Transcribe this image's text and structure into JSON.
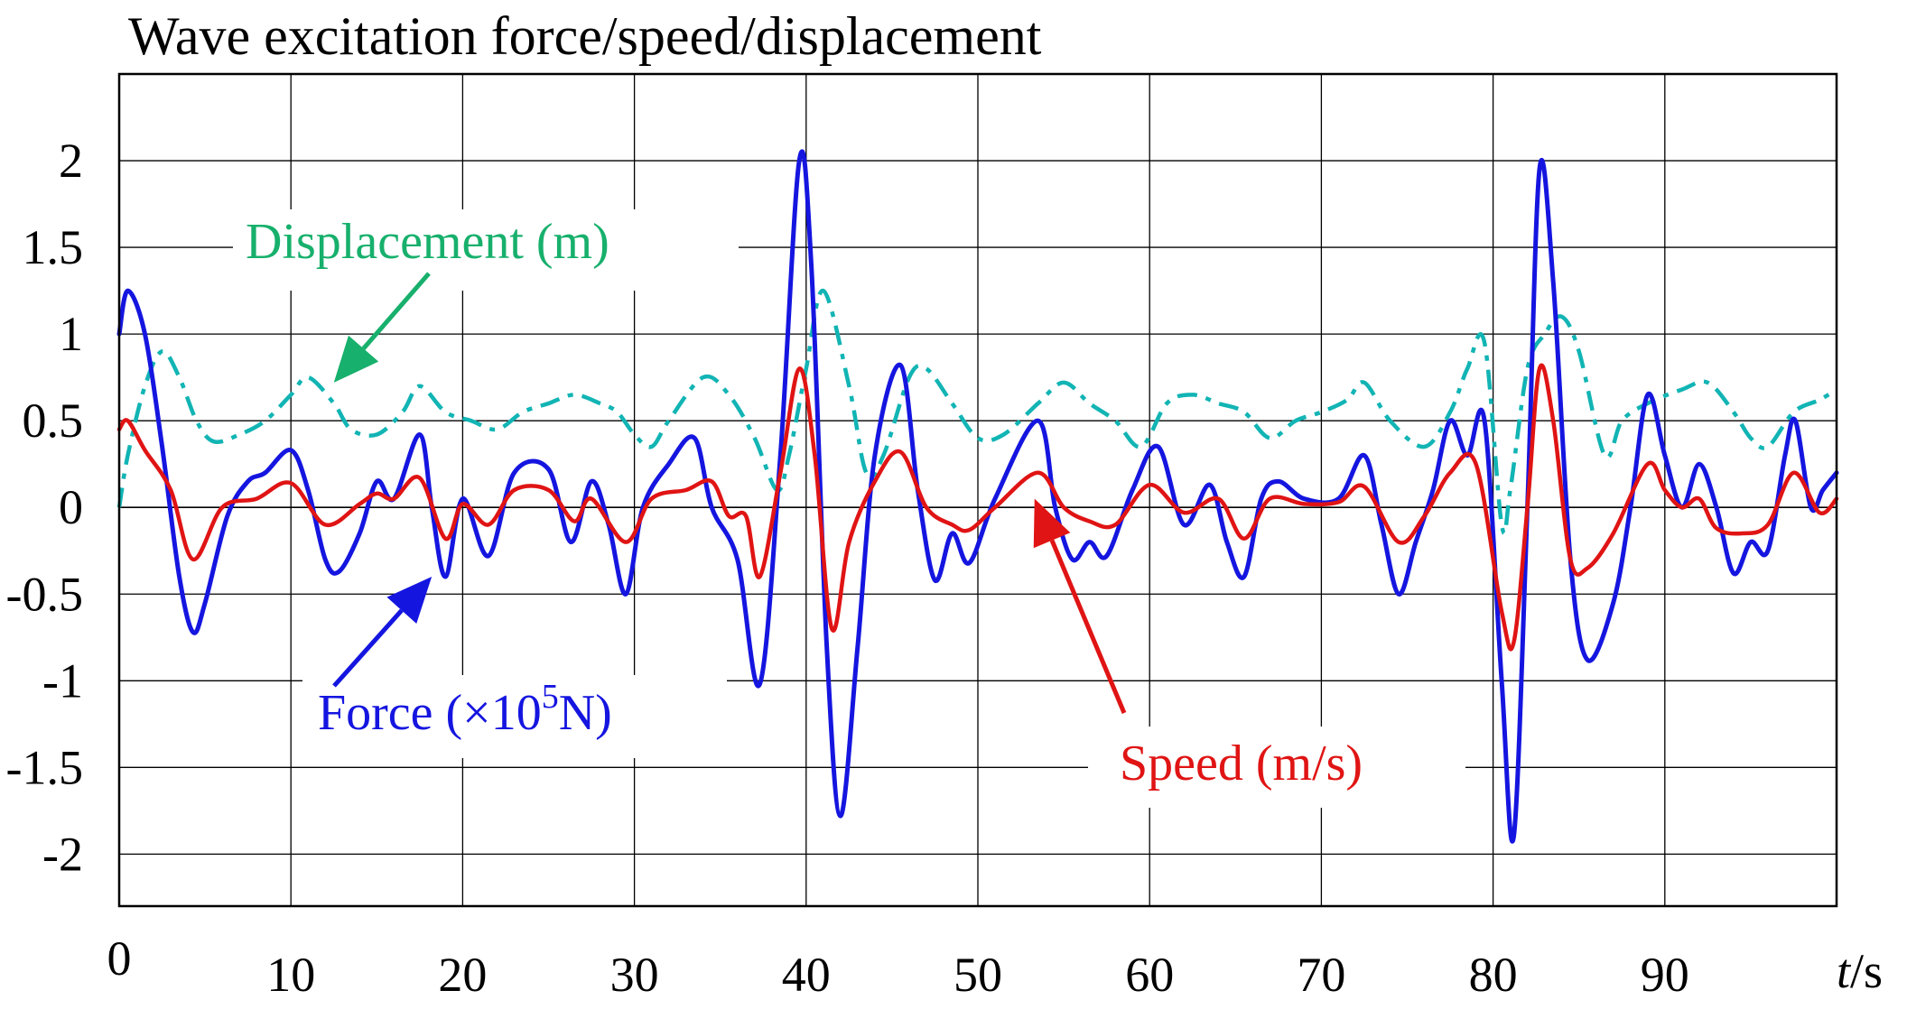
{
  "chart_data": {
    "type": "line",
    "title": "Wave excitation force/speed/displacement",
    "xlabel_italic": "t",
    "xlabel_unit": "/s",
    "xlim": [
      0,
      100
    ],
    "ylim": [
      -2.3,
      2.5
    ],
    "xticks": [
      0,
      10,
      20,
      30,
      40,
      50,
      60,
      70,
      80,
      90
    ],
    "xtick_labels": [
      "0",
      "10",
      "20",
      "30",
      "40",
      "50",
      "60",
      "70",
      "80",
      "90"
    ],
    "yticks": [
      2,
      1.5,
      1,
      0.5,
      0,
      -0.5,
      -1,
      -1.5,
      -2
    ],
    "ytick_labels": [
      "2",
      "1.5",
      "1",
      "0.5",
      "0",
      "-0.5",
      "-1",
      "-1.5",
      "-2"
    ],
    "grid": true,
    "series": [
      {
        "name": "Force",
        "label_prefix": "Force (×10",
        "label_sup": "5",
        "label_suffix": "N)",
        "color": "#1515e0",
        "style": "solid",
        "points": [
          [
            0,
            1.0
          ],
          [
            0.5,
            1.25
          ],
          [
            1.5,
            1.0
          ],
          [
            2.5,
            0.35
          ],
          [
            3.5,
            -0.4
          ],
          [
            4.3,
            -0.72
          ],
          [
            5,
            -0.55
          ],
          [
            6.3,
            -0.05
          ],
          [
            7.5,
            0.15
          ],
          [
            8.5,
            0.2
          ],
          [
            10,
            0.33
          ],
          [
            11,
            0.1
          ],
          [
            12,
            -0.3
          ],
          [
            12.8,
            -0.37
          ],
          [
            14,
            -0.15
          ],
          [
            15,
            0.15
          ],
          [
            16,
            0.05
          ],
          [
            17.5,
            0.42
          ],
          [
            18.2,
            0.0
          ],
          [
            19,
            -0.4
          ],
          [
            20,
            0.05
          ],
          [
            21.5,
            -0.28
          ],
          [
            23,
            0.2
          ],
          [
            25,
            0.22
          ],
          [
            26.3,
            -0.2
          ],
          [
            27.5,
            0.15
          ],
          [
            28.5,
            -0.1
          ],
          [
            29.5,
            -0.5
          ],
          [
            30.5,
            0.0
          ],
          [
            32,
            0.25
          ],
          [
            33.5,
            0.4
          ],
          [
            34.5,
            0.0
          ],
          [
            36,
            -0.3
          ],
          [
            37.3,
            -1.02
          ],
          [
            38.5,
            0.3
          ],
          [
            39.6,
            2.0
          ],
          [
            40.3,
            1.4
          ],
          [
            41.2,
            -0.8
          ],
          [
            42,
            -1.78
          ],
          [
            43,
            -0.8
          ],
          [
            44,
            0.3
          ],
          [
            45.5,
            0.82
          ],
          [
            46.5,
            0.1
          ],
          [
            47.5,
            -0.42
          ],
          [
            48.5,
            -0.15
          ],
          [
            49.5,
            -0.32
          ],
          [
            51,
            0.05
          ],
          [
            53.5,
            0.5
          ],
          [
            54.5,
            0.0
          ],
          [
            55.5,
            -0.3
          ],
          [
            56.5,
            -0.2
          ],
          [
            57.5,
            -0.28
          ],
          [
            59,
            0.1
          ],
          [
            60.5,
            0.35
          ],
          [
            62,
            -0.1
          ],
          [
            63.5,
            0.13
          ],
          [
            64.5,
            -0.2
          ],
          [
            65.5,
            -0.4
          ],
          [
            66.5,
            0.05
          ],
          [
            67.5,
            0.15
          ],
          [
            69,
            0.05
          ],
          [
            71,
            0.05
          ],
          [
            72.5,
            0.3
          ],
          [
            73.5,
            -0.1
          ],
          [
            74.5,
            -0.5
          ],
          [
            75.5,
            -0.2
          ],
          [
            76.5,
            0.1
          ],
          [
            77.5,
            0.5
          ],
          [
            78.5,
            0.3
          ],
          [
            79.5,
            0.5
          ],
          [
            80.5,
            -1.0
          ],
          [
            81.2,
            -1.9
          ],
          [
            82,
            0.0
          ],
          [
            82.7,
            1.95
          ],
          [
            83.5,
            1.3
          ],
          [
            84.5,
            -0.3
          ],
          [
            85.5,
            -0.88
          ],
          [
            87,
            -0.55
          ],
          [
            88,
            0.0
          ],
          [
            89,
            0.65
          ],
          [
            90,
            0.3
          ],
          [
            91,
            0.0
          ],
          [
            92,
            0.25
          ],
          [
            93,
            0.0
          ],
          [
            94,
            -0.38
          ],
          [
            95,
            -0.2
          ],
          [
            96,
            -0.25
          ],
          [
            97,
            0.3
          ],
          [
            97.6,
            0.5
          ],
          [
            98.5,
            0.0
          ],
          [
            99.2,
            0.1
          ],
          [
            100,
            0.2
          ]
        ]
      },
      {
        "name": "Speed",
        "label": "Speed (m/s)",
        "color": "#e01414",
        "style": "solid",
        "points": [
          [
            0,
            0.45
          ],
          [
            0.5,
            0.5
          ],
          [
            1.5,
            0.33
          ],
          [
            3,
            0.1
          ],
          [
            4.3,
            -0.3
          ],
          [
            6,
            0.0
          ],
          [
            8,
            0.05
          ],
          [
            10,
            0.14
          ],
          [
            12,
            -0.1
          ],
          [
            14,
            0.02
          ],
          [
            15,
            0.08
          ],
          [
            16,
            0.05
          ],
          [
            17.5,
            0.17
          ],
          [
            19,
            -0.18
          ],
          [
            20,
            0.02
          ],
          [
            21.5,
            -0.1
          ],
          [
            23,
            0.1
          ],
          [
            25,
            0.1
          ],
          [
            26.5,
            -0.08
          ],
          [
            27.5,
            0.05
          ],
          [
            29.5,
            -0.2
          ],
          [
            31,
            0.05
          ],
          [
            33,
            0.1
          ],
          [
            34.5,
            0.15
          ],
          [
            35.5,
            -0.05
          ],
          [
            36.5,
            -0.05
          ],
          [
            37.3,
            -0.4
          ],
          [
            38.5,
            0.2
          ],
          [
            39.6,
            0.8
          ],
          [
            40.5,
            0.3
          ],
          [
            41.5,
            -0.7
          ],
          [
            42.5,
            -0.2
          ],
          [
            44,
            0.15
          ],
          [
            45.5,
            0.32
          ],
          [
            47,
            0.0
          ],
          [
            48.5,
            -0.1
          ],
          [
            49.5,
            -0.13
          ],
          [
            51,
            0.0
          ],
          [
            53.5,
            0.2
          ],
          [
            55,
            0.0
          ],
          [
            56.5,
            -0.08
          ],
          [
            58,
            -0.1
          ],
          [
            60,
            0.13
          ],
          [
            62,
            -0.03
          ],
          [
            64,
            0.05
          ],
          [
            65.5,
            -0.18
          ],
          [
            67,
            0.05
          ],
          [
            69,
            0.02
          ],
          [
            71,
            0.03
          ],
          [
            72.5,
            0.12
          ],
          [
            74.5,
            -0.2
          ],
          [
            76,
            -0.05
          ],
          [
            77.5,
            0.2
          ],
          [
            79,
            0.25
          ],
          [
            80.5,
            -0.6
          ],
          [
            81.2,
            -0.78
          ],
          [
            82,
            0.0
          ],
          [
            82.7,
            0.8
          ],
          [
            83.5,
            0.5
          ],
          [
            84.5,
            -0.3
          ],
          [
            85.5,
            -0.35
          ],
          [
            87,
            -0.15
          ],
          [
            89,
            0.25
          ],
          [
            90,
            0.1
          ],
          [
            91,
            0.0
          ],
          [
            92,
            0.05
          ],
          [
            93,
            -0.12
          ],
          [
            94.5,
            -0.15
          ],
          [
            96,
            -0.1
          ],
          [
            97.5,
            0.2
          ],
          [
            99,
            -0.03
          ],
          [
            100,
            0.05
          ]
        ]
      },
      {
        "name": "Displacement",
        "label": "Displacement (m)",
        "color": "#12b4b4",
        "label_color": "#17b06c",
        "style": "dashdot",
        "points": [
          [
            0,
            0.0
          ],
          [
            0.5,
            0.3
          ],
          [
            1.5,
            0.7
          ],
          [
            2.5,
            0.9
          ],
          [
            3.5,
            0.75
          ],
          [
            4.5,
            0.5
          ],
          [
            5.5,
            0.38
          ],
          [
            7,
            0.42
          ],
          [
            8.5,
            0.5
          ],
          [
            10,
            0.65
          ],
          [
            11,
            0.75
          ],
          [
            12.5,
            0.6
          ],
          [
            13.5,
            0.45
          ],
          [
            15,
            0.42
          ],
          [
            16.5,
            0.55
          ],
          [
            17.5,
            0.7
          ],
          [
            19,
            0.55
          ],
          [
            20.5,
            0.5
          ],
          [
            22,
            0.45
          ],
          [
            23.5,
            0.55
          ],
          [
            25,
            0.6
          ],
          [
            26.5,
            0.65
          ],
          [
            28,
            0.6
          ],
          [
            29,
            0.55
          ],
          [
            30,
            0.42
          ],
          [
            31,
            0.35
          ],
          [
            32,
            0.5
          ],
          [
            34,
            0.75
          ],
          [
            35.5,
            0.65
          ],
          [
            37,
            0.4
          ],
          [
            38.3,
            0.1
          ],
          [
            39,
            0.3
          ],
          [
            40,
            0.8
          ],
          [
            41,
            1.25
          ],
          [
            42.5,
            0.7
          ],
          [
            43.5,
            0.2
          ],
          [
            44.5,
            0.3
          ],
          [
            46,
            0.75
          ],
          [
            47,
            0.8
          ],
          [
            48.5,
            0.6
          ],
          [
            50,
            0.4
          ],
          [
            51.5,
            0.42
          ],
          [
            53.5,
            0.6
          ],
          [
            55,
            0.72
          ],
          [
            56.5,
            0.6
          ],
          [
            58,
            0.5
          ],
          [
            59.5,
            0.35
          ],
          [
            61,
            0.6
          ],
          [
            62.5,
            0.65
          ],
          [
            64,
            0.6
          ],
          [
            65.5,
            0.55
          ],
          [
            67,
            0.4
          ],
          [
            68.5,
            0.5
          ],
          [
            70,
            0.55
          ],
          [
            71.5,
            0.62
          ],
          [
            72.5,
            0.72
          ],
          [
            74,
            0.5
          ],
          [
            76,
            0.35
          ],
          [
            77.5,
            0.55
          ],
          [
            78.5,
            0.8
          ],
          [
            79.5,
            0.95
          ],
          [
            80.5,
            -0.1
          ],
          [
            81,
            0.1
          ],
          [
            82,
            0.8
          ],
          [
            83,
            1.0
          ],
          [
            84,
            1.1
          ],
          [
            85,
            0.9
          ],
          [
            86.5,
            0.3
          ],
          [
            87.5,
            0.5
          ],
          [
            89,
            0.6
          ],
          [
            91,
            0.68
          ],
          [
            92.5,
            0.72
          ],
          [
            94,
            0.55
          ],
          [
            95,
            0.4
          ],
          [
            96,
            0.35
          ],
          [
            97.5,
            0.55
          ],
          [
            99,
            0.62
          ],
          [
            100,
            0.68
          ]
        ]
      }
    ],
    "annotations": [
      {
        "series": "Displacement",
        "text": "Displacement (m)",
        "at": [
          12.5,
          0.72
        ]
      },
      {
        "series": "Force",
        "text": "Force (×10^5N)",
        "at": [
          18.2,
          -0.4
        ]
      },
      {
        "series": "Speed",
        "text": "Speed (m/s)",
        "at": [
          53.3,
          0.05
        ]
      }
    ]
  }
}
